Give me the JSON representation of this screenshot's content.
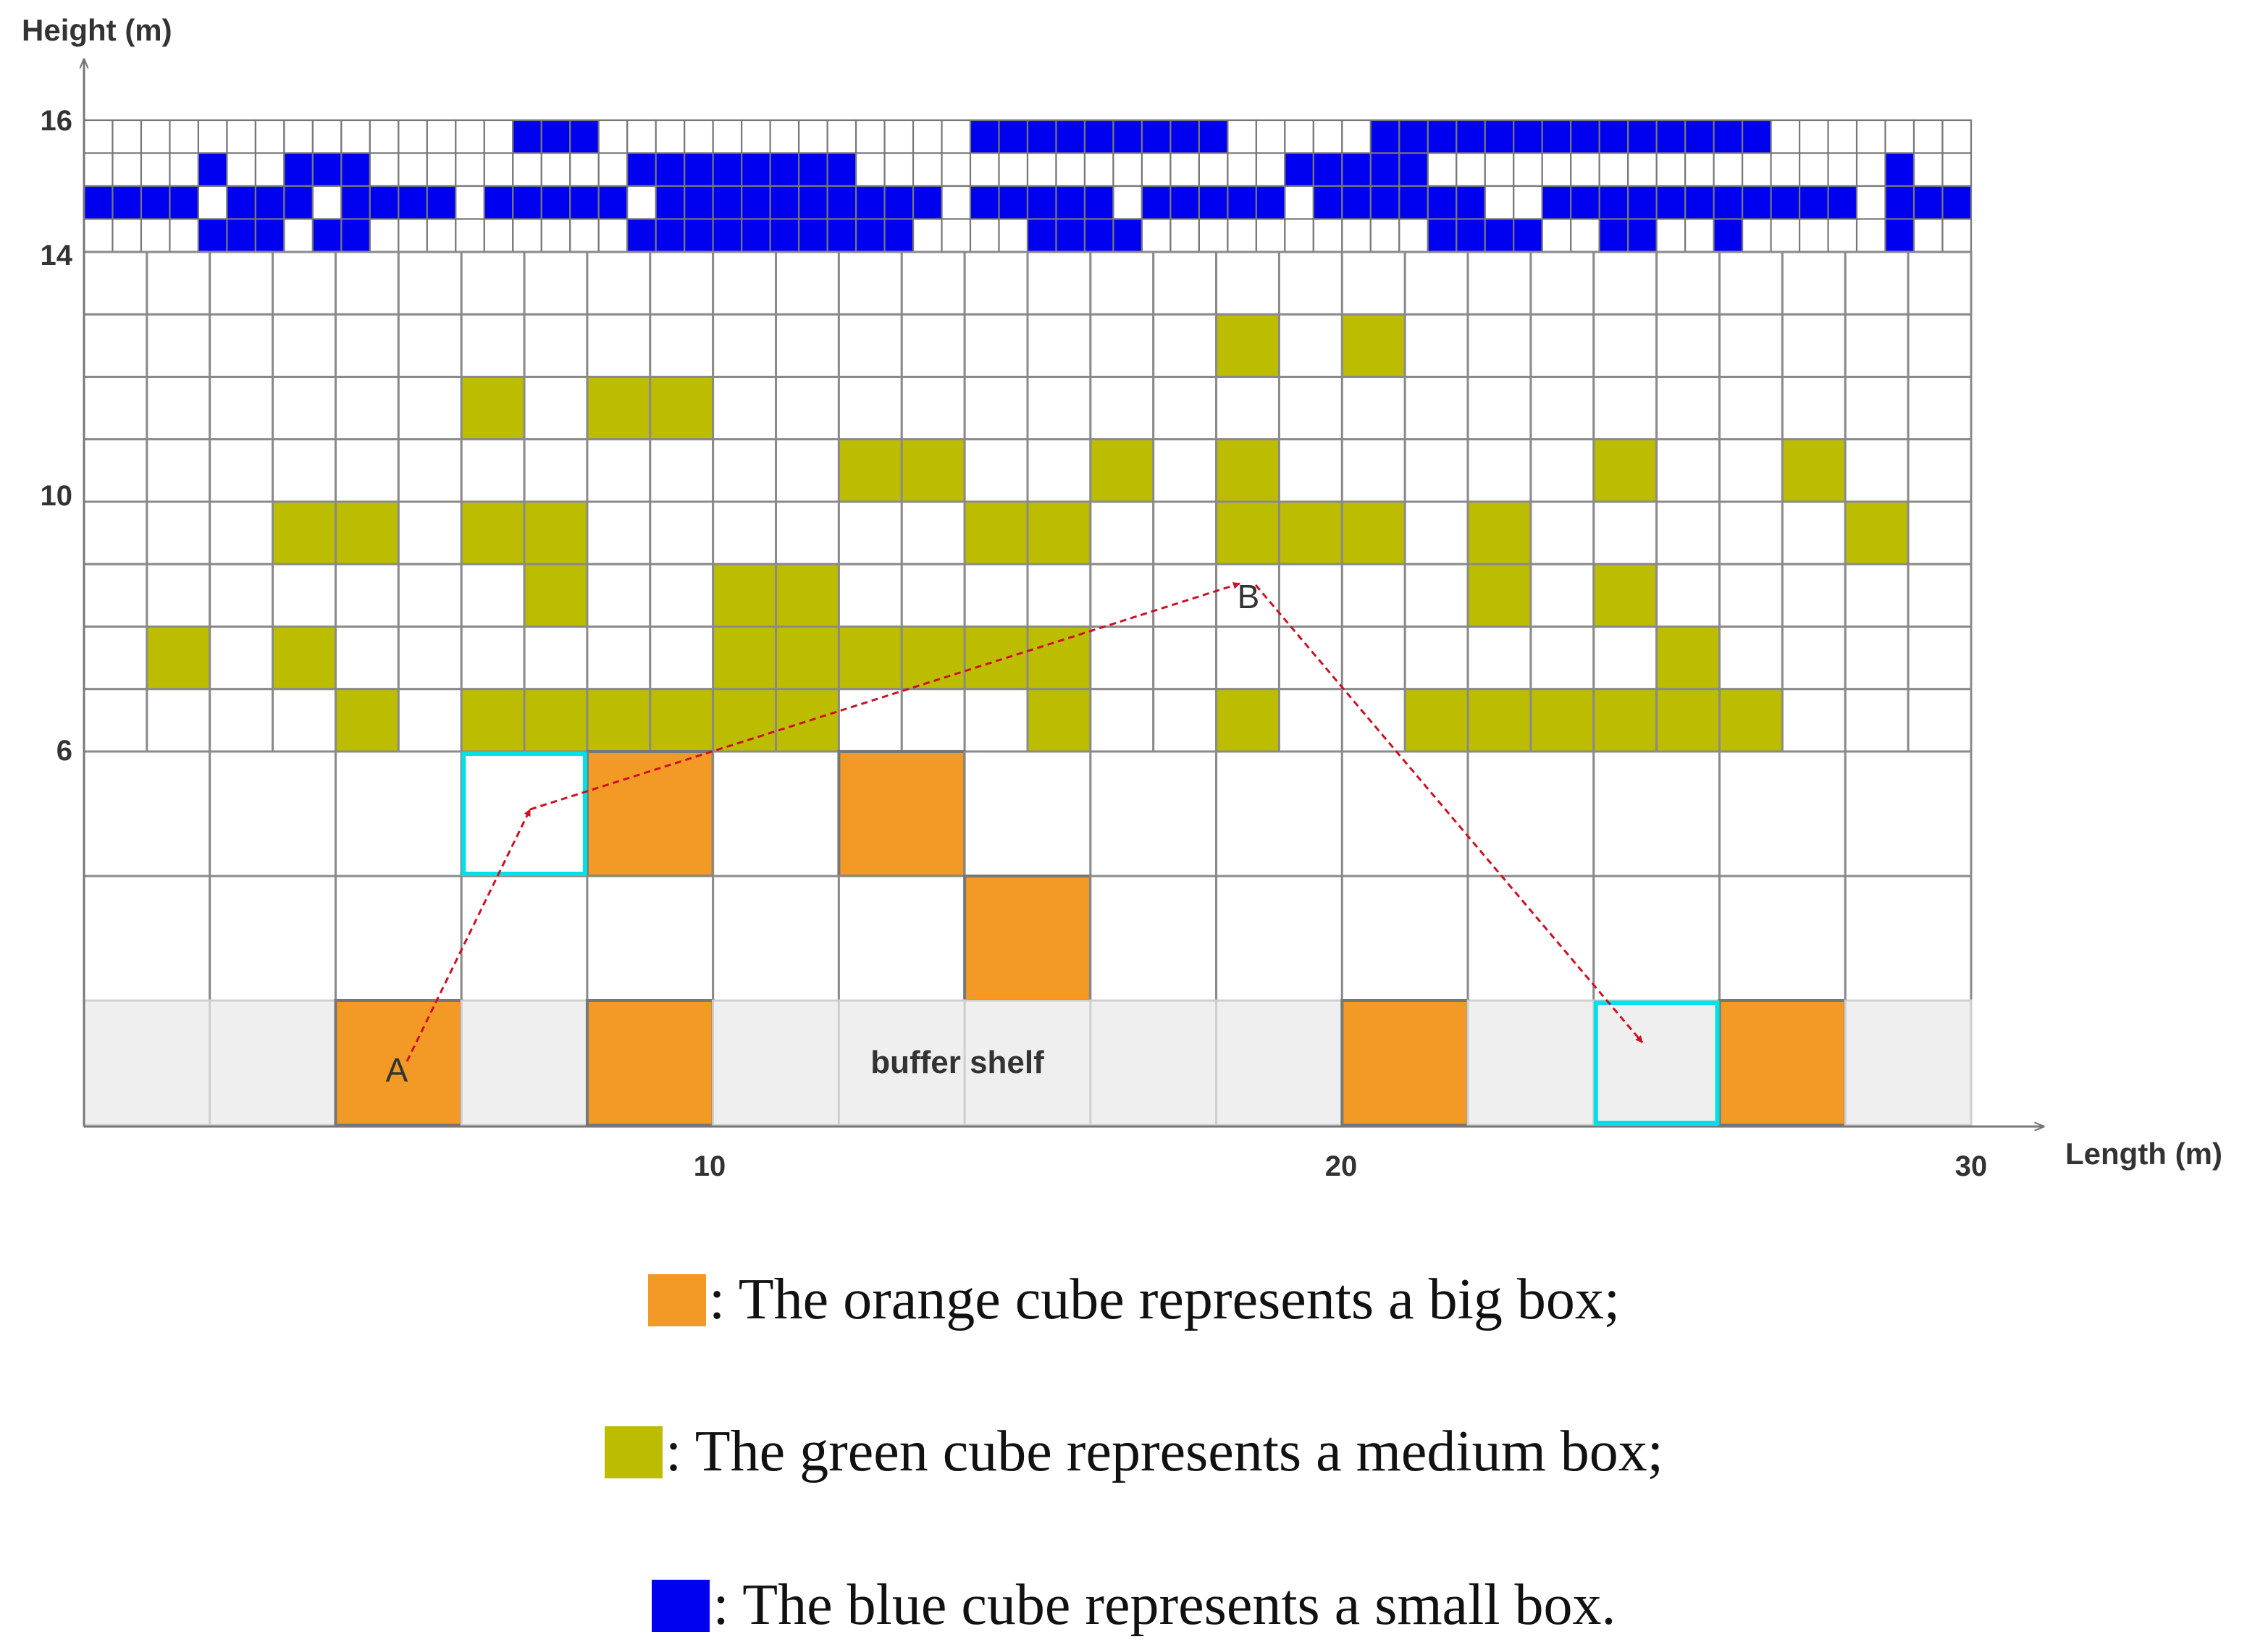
{
  "axes": {
    "y_label": "Height (m)",
    "x_label": "Length (m)",
    "y_ticks": [
      "16",
      "14",
      "10",
      "6"
    ],
    "x_ticks": [
      "10",
      "20",
      "30"
    ]
  },
  "labels": {
    "buffer_shelf": "buffer shelf",
    "point_a": "A",
    "point_b": "B"
  },
  "colors": {
    "big_box": "#F39A26",
    "medium_box": "#BDBD00",
    "small_box": "#0000F0",
    "target_slot": "#00E0E8",
    "path": "#CC1122",
    "buffer_fill": "#EFEFEF",
    "grid": "#8A8A8A"
  },
  "small_box_rows": [
    "000000000000000111000000000000011111111100000111111111111110000000",
    "000010011100000000011111111000000000000000111110000000000000000100",
    "111101110111101111101111111111011111011111011111100111111111110111",
    "000011101100000000011111111110000111100000000001111001100100000100"
  ],
  "medium_boxes": [
    {
      "col": 18,
      "row": 1
    },
    {
      "col": 20,
      "row": 1
    },
    {
      "col": 6,
      "row": 2
    },
    {
      "col": 8,
      "row": 2
    },
    {
      "col": 9,
      "row": 2
    },
    {
      "col": 12,
      "row": 3
    },
    {
      "col": 13,
      "row": 3
    },
    {
      "col": 16,
      "row": 3
    },
    {
      "col": 18,
      "row": 3
    },
    {
      "col": 24,
      "row": 3
    },
    {
      "col": 27,
      "row": 3
    },
    {
      "col": 3,
      "row": 4
    },
    {
      "col": 4,
      "row": 4
    },
    {
      "col": 6,
      "row": 4
    },
    {
      "col": 7,
      "row": 4
    },
    {
      "col": 14,
      "row": 4
    },
    {
      "col": 15,
      "row": 4
    },
    {
      "col": 18,
      "row": 4
    },
    {
      "col": 19,
      "row": 4
    },
    {
      "col": 20,
      "row": 4
    },
    {
      "col": 22,
      "row": 4
    },
    {
      "col": 28,
      "row": 4
    },
    {
      "col": 7,
      "row": 5
    },
    {
      "col": 10,
      "row": 5
    },
    {
      "col": 11,
      "row": 5
    },
    {
      "col": 22,
      "row": 5
    },
    {
      "col": 24,
      "row": 5
    },
    {
      "col": 1,
      "row": 6
    },
    {
      "col": 3,
      "row": 6
    },
    {
      "col": 10,
      "row": 6
    },
    {
      "col": 11,
      "row": 6
    },
    {
      "col": 12,
      "row": 6
    },
    {
      "col": 13,
      "row": 6
    },
    {
      "col": 14,
      "row": 6
    },
    {
      "col": 15,
      "row": 6
    },
    {
      "col": 25,
      "row": 6
    },
    {
      "col": 4,
      "row": 7
    },
    {
      "col": 6,
      "row": 7
    },
    {
      "col": 7,
      "row": 7
    },
    {
      "col": 8,
      "row": 7
    },
    {
      "col": 9,
      "row": 7
    },
    {
      "col": 10,
      "row": 7
    },
    {
      "col": 11,
      "row": 7
    },
    {
      "col": 15,
      "row": 7
    },
    {
      "col": 18,
      "row": 7
    },
    {
      "col": 21,
      "row": 7
    },
    {
      "col": 22,
      "row": 7
    },
    {
      "col": 23,
      "row": 7
    },
    {
      "col": 24,
      "row": 7
    },
    {
      "col": 25,
      "row": 7
    },
    {
      "col": 26,
      "row": 7
    }
  ],
  "big_boxes": [
    {
      "col": 4,
      "row": 0
    },
    {
      "col": 6,
      "row": 0
    },
    {
      "col": 7,
      "row": 1
    },
    {
      "col": 2,
      "row": 2
    },
    {
      "col": 4,
      "row": 2
    },
    {
      "col": 10,
      "row": 2
    },
    {
      "col": 13,
      "row": 2
    }
  ],
  "target_slots": [
    {
      "col": 3,
      "row": 0,
      "level": "upper"
    },
    {
      "col": 12,
      "row": 2,
      "level": "buffer"
    }
  ],
  "legend": [
    {
      "key": "big",
      "text": ": The orange cube represents a big box;"
    },
    {
      "key": "medium",
      "text": ": The green cube represents a medium box;"
    },
    {
      "key": "small",
      "text": ": The blue cube represents a small box."
    }
  ]
}
